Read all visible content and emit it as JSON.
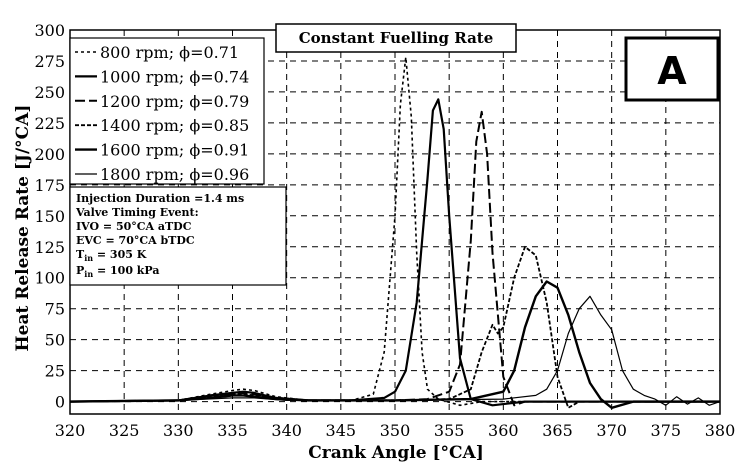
{
  "chart_data": {
    "type": "line",
    "title": "Constant Fuelling Rate",
    "panel_label": "A",
    "xlabel": "Crank Angle [°CA]",
    "ylabel": "Heat Release Rate [J/°CA]",
    "xlim": [
      320,
      380
    ],
    "ylim": [
      -10,
      300
    ],
    "xticks": [
      320,
      325,
      330,
      335,
      340,
      345,
      350,
      355,
      360,
      365,
      370,
      375,
      380
    ],
    "yticks": [
      0,
      25,
      50,
      75,
      100,
      125,
      150,
      175,
      200,
      225,
      250,
      275,
      300
    ],
    "grid": true,
    "legend_position": "top-left",
    "series": [
      {
        "name": "800 rpm; ϕ=0.71",
        "dash": "3,3",
        "width": 1.6,
        "x": [
          320,
          330,
          333,
          335,
          336,
          337,
          339,
          342,
          346,
          348,
          349,
          350,
          350.5,
          351,
          351.5,
          352,
          352.5,
          353,
          354,
          356,
          358,
          380
        ],
        "y": [
          0,
          1,
          6,
          9,
          10,
          9,
          4,
          1,
          1,
          6,
          40,
          150,
          240,
          278,
          230,
          120,
          40,
          10,
          2,
          -3,
          0,
          0
        ]
      },
      {
        "name": "1000 rpm; ϕ=0.74",
        "dash": "",
        "width": 2.2,
        "x": [
          320,
          330,
          333,
          335,
          336,
          337,
          339,
          342,
          346,
          349,
          350,
          351,
          352,
          353,
          353.5,
          354,
          354.5,
          355,
          356,
          357,
          359,
          362,
          380
        ],
        "y": [
          0,
          1,
          5,
          7,
          8,
          7,
          3,
          1,
          1,
          3,
          8,
          25,
          80,
          180,
          235,
          244,
          220,
          150,
          35,
          2,
          -3,
          0,
          0
        ]
      },
      {
        "name": "1200 rpm; ϕ=0.79",
        "dash": "10,4",
        "width": 2.0,
        "x": [
          320,
          330,
          333,
          335,
          336,
          337,
          339,
          342,
          350,
          353,
          355,
          356,
          357,
          357.5,
          358,
          358.5,
          359,
          360,
          361,
          362,
          364,
          380
        ],
        "y": [
          0,
          1,
          5,
          6,
          7,
          6,
          3,
          1,
          1,
          2,
          8,
          30,
          130,
          210,
          234,
          200,
          120,
          20,
          -3,
          0,
          0,
          0
        ]
      },
      {
        "name": "1400 rpm; ϕ=0.85",
        "dash": "4,2",
        "width": 1.8,
        "x": [
          320,
          330,
          333,
          335,
          336,
          337,
          339,
          342,
          350,
          355,
          357,
          358,
          359,
          359.5,
          360,
          361,
          362,
          363,
          364,
          365,
          366,
          367,
          368,
          370,
          380
        ],
        "y": [
          0,
          1,
          4,
          6,
          6,
          5,
          3,
          1,
          1,
          2,
          10,
          40,
          62,
          55,
          60,
          100,
          125,
          118,
          80,
          20,
          -5,
          0,
          0,
          0,
          0
        ]
      },
      {
        "name": "1600 rpm; ϕ=0.91",
        "dash": "",
        "width": 2.4,
        "x": [
          320,
          330,
          333,
          335,
          336,
          337,
          339,
          342,
          350,
          357,
          360,
          361,
          362,
          363,
          364,
          365,
          366,
          367,
          368,
          369,
          370,
          372,
          380
        ],
        "y": [
          0,
          1,
          3,
          5,
          5,
          4,
          2,
          1,
          1,
          2,
          8,
          25,
          60,
          85,
          97,
          92,
          70,
          40,
          15,
          2,
          -5,
          0,
          0
        ]
      },
      {
        "name": "1800 rpm; ϕ=0.96",
        "dash": "",
        "width": 1.2,
        "x": [
          320,
          330,
          335,
          337,
          340,
          350,
          360,
          363,
          364,
          365,
          366,
          367,
          368,
          369,
          370,
          371,
          372,
          373,
          374,
          375,
          376,
          377,
          378,
          379,
          380
        ],
        "y": [
          0,
          1,
          3,
          3,
          1,
          1,
          2,
          5,
          10,
          25,
          55,
          75,
          85,
          70,
          58,
          25,
          10,
          5,
          2,
          -3,
          4,
          -2,
          3,
          -3,
          0
        ]
      }
    ],
    "annotation": {
      "lines": [
        "Injection Duration =1.4 ms",
        "Valve Timing Event:",
        "IVO = 50°CA aTDC",
        "EVC = 70°CA bTDC",
        "Tin = 305 K",
        "Pin = 100 kPa"
      ]
    }
  }
}
